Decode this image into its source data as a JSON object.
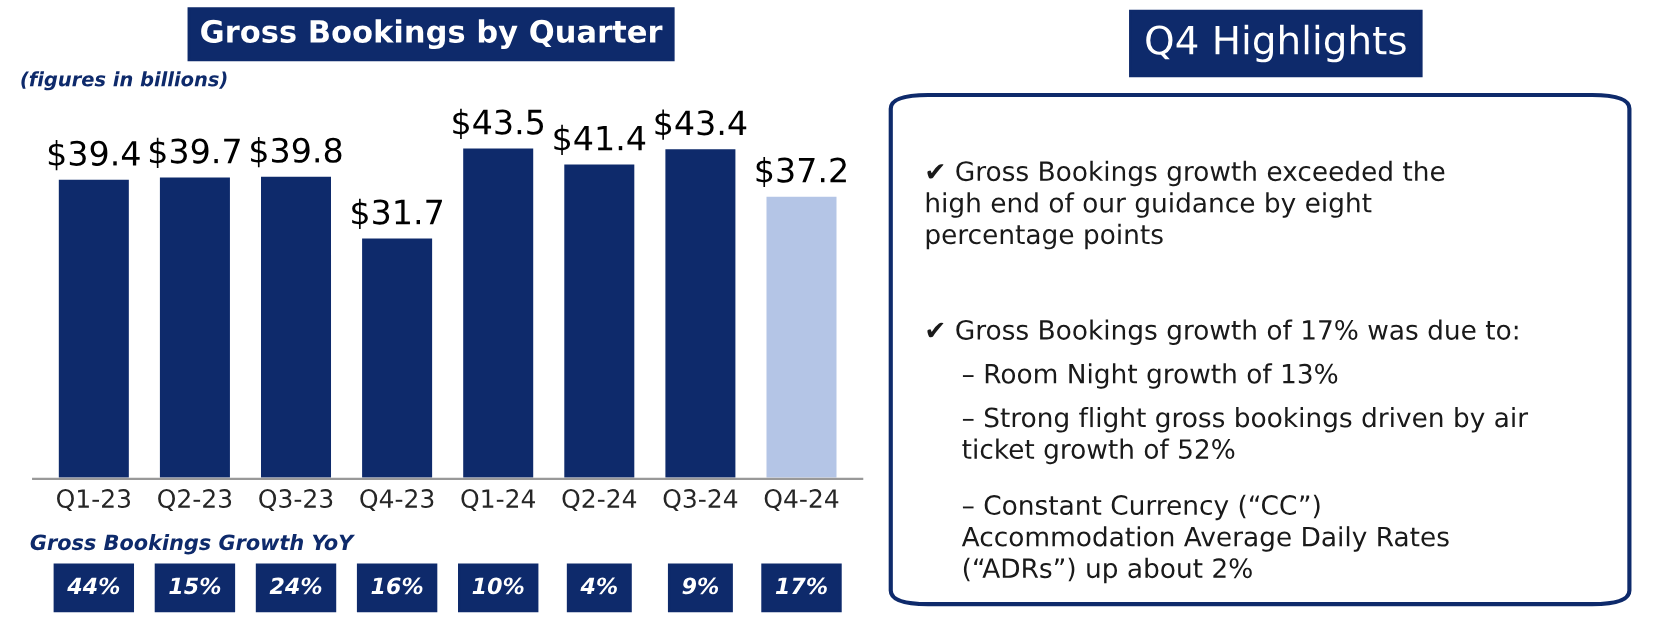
{
  "chart_data": [
    {
      "type": "bar",
      "title": "Gross Bookings by Quarter",
      "subtitle": "(figures in billions)",
      "categories": [
        "Q1-23",
        "Q2-23",
        "Q3-23",
        "Q4-23",
        "Q1-24",
        "Q2-24",
        "Q3-24",
        "Q4-24"
      ],
      "values": [
        39.4,
        39.7,
        39.8,
        31.7,
        43.5,
        41.4,
        43.4,
        37.2
      ],
      "value_labels": [
        "$39.4",
        "$39.7",
        "$39.8",
        "$31.7",
        "$43.5",
        "$41.4",
        "$43.4",
        "$37.2"
      ],
      "colors": [
        "#0e2a6b",
        "#0e2a6b",
        "#0e2a6b",
        "#0e2a6b",
        "#0e2a6b",
        "#0e2a6b",
        "#0e2a6b",
        "#b4c5e6"
      ],
      "tick_labels": "x",
      "annotations": [
        "Gross Bookings Growth YoY",
        "44%",
        "15%",
        "24%",
        "16%",
        "10%",
        "4%",
        "9%",
        "17%"
      ]
    },
    {
      "type": "other",
      "title": "Q4 Highlights",
      "annotations": [
        "✔ Gross Bookings growth exceeded the\nhigh end of our guidance by eight\npercentage points",
        "✔ Gross Bookings growth of 17% was due to:",
        "– Room Night growth of 13%",
        "– Strong flight gross bookings driven by air\nticket growth of 52%",
        "– Constant Currency (“CC”)\nAccommodation Average Daily Rates\n(“ADRs”) up about 2%"
      ]
    }
  ]
}
